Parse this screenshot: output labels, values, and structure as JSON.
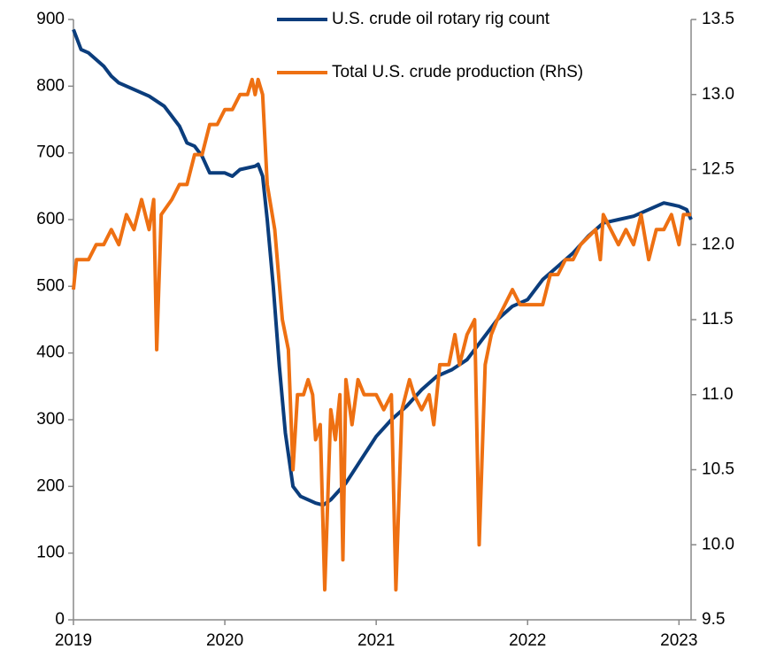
{
  "chart_data": {
    "type": "line",
    "xlim": [
      2019,
      2023.08
    ],
    "xticks": [
      2019,
      2020,
      2021,
      2022,
      2023
    ],
    "ylim": [
      0,
      900
    ],
    "yticks": [
      0,
      100,
      200,
      300,
      400,
      500,
      600,
      700,
      800,
      900
    ],
    "y2lim": [
      9.5,
      13.5
    ],
    "y2ticks": [
      9.5,
      {
        "value": 10,
        "label": "10.0"
      },
      10.5,
      {
        "value": 11,
        "label": "11.0"
      },
      11.5,
      {
        "value": 12,
        "label": "12.0"
      },
      12.5,
      {
        "value": 13,
        "label": "13.0"
      },
      13.5
    ],
    "legend": "upper right",
    "grid": false,
    "series": [
      {
        "name": "U.S. crude oil rotary rig count",
        "color": "#0b3d7c",
        "x": [
          2019.0,
          2019.05,
          2019.1,
          2019.2,
          2019.25,
          2019.3,
          2019.4,
          2019.5,
          2019.6,
          2019.7,
          2019.75,
          2019.8,
          2019.85,
          2019.9,
          2020.0,
          2020.05,
          2020.1,
          2020.2,
          2020.22,
          2020.25,
          2020.28,
          2020.32,
          2020.36,
          2020.4,
          2020.45,
          2020.5,
          2020.6,
          2020.65,
          2020.7,
          2020.8,
          2020.9,
          2021.0,
          2021.1,
          2021.2,
          2021.3,
          2021.4,
          2021.5,
          2021.6,
          2021.7,
          2021.8,
          2021.9,
          2022.0,
          2022.1,
          2022.2,
          2022.3,
          2022.4,
          2022.5,
          2022.6,
          2022.7,
          2022.8,
          2022.9,
          2023.0,
          2023.05,
          2023.08
        ],
        "values": [
          885,
          855,
          850,
          830,
          815,
          805,
          795,
          785,
          770,
          740,
          715,
          710,
          695,
          670,
          670,
          665,
          675,
          680,
          683,
          665,
          600,
          500,
          380,
          280,
          200,
          185,
          175,
          172,
          180,
          205,
          240,
          275,
          300,
          320,
          345,
          365,
          375,
          390,
          420,
          450,
          470,
          480,
          510,
          530,
          550,
          575,
          595,
          600,
          605,
          615,
          625,
          620,
          615,
          600
        ]
      },
      {
        "name": "Total U.S. crude production (RhS)",
        "color": "#ee7012",
        "axis": "y2",
        "x": [
          2019.0,
          2019.02,
          2019.1,
          2019.15,
          2019.2,
          2019.25,
          2019.3,
          2019.35,
          2019.4,
          2019.45,
          2019.5,
          2019.53,
          2019.55,
          2019.58,
          2019.65,
          2019.7,
          2019.75,
          2019.8,
          2019.85,
          2019.9,
          2019.95,
          2020.0,
          2020.05,
          2020.1,
          2020.15,
          2020.18,
          2020.2,
          2020.22,
          2020.25,
          2020.28,
          2020.33,
          2020.38,
          2020.42,
          2020.45,
          2020.48,
          2020.52,
          2020.55,
          2020.58,
          2020.6,
          2020.63,
          2020.66,
          2020.7,
          2020.73,
          2020.76,
          2020.78,
          2020.8,
          2020.84,
          2020.88,
          2020.92,
          2021.0,
          2021.05,
          2021.1,
          2021.13,
          2021.17,
          2021.22,
          2021.25,
          2021.3,
          2021.35,
          2021.38,
          2021.42,
          2021.48,
          2021.52,
          2021.55,
          2021.6,
          2021.65,
          2021.68,
          2021.72,
          2021.76,
          2021.8,
          2021.85,
          2021.9,
          2021.95,
          2022.0,
          2022.05,
          2022.1,
          2022.15,
          2022.2,
          2022.25,
          2022.3,
          2022.35,
          2022.45,
          2022.48,
          2022.5,
          2022.55,
          2022.6,
          2022.65,
          2022.7,
          2022.75,
          2022.8,
          2022.85,
          2022.9,
          2022.95,
          2023.0,
          2023.03,
          2023.08
        ],
        "values": [
          11.7,
          11.9,
          11.9,
          12.0,
          12.0,
          12.1,
          12.0,
          12.2,
          12.1,
          12.3,
          12.1,
          12.3,
          11.3,
          12.2,
          12.3,
          12.4,
          12.4,
          12.6,
          12.6,
          12.8,
          12.8,
          12.9,
          12.9,
          13.0,
          13.0,
          13.1,
          13.0,
          13.1,
          13.0,
          12.4,
          12.1,
          11.5,
          11.3,
          10.5,
          11.0,
          11.0,
          11.1,
          11.0,
          10.7,
          10.8,
          9.7,
          10.9,
          10.7,
          11.0,
          9.9,
          11.1,
          10.8,
          11.1,
          11.0,
          11.0,
          10.9,
          11.0,
          9.7,
          10.9,
          11.1,
          11.0,
          10.9,
          11.0,
          10.8,
          11.2,
          11.2,
          11.4,
          11.2,
          11.4,
          11.5,
          10.0,
          11.2,
          11.4,
          11.5,
          11.6,
          11.7,
          11.6,
          11.6,
          11.6,
          11.6,
          11.8,
          11.8,
          11.9,
          11.9,
          12.0,
          12.1,
          11.9,
          12.2,
          12.1,
          12.0,
          12.1,
          12.0,
          12.2,
          11.9,
          12.1,
          12.1,
          12.2,
          12.0,
          12.2,
          12.2
        ]
      }
    ]
  }
}
